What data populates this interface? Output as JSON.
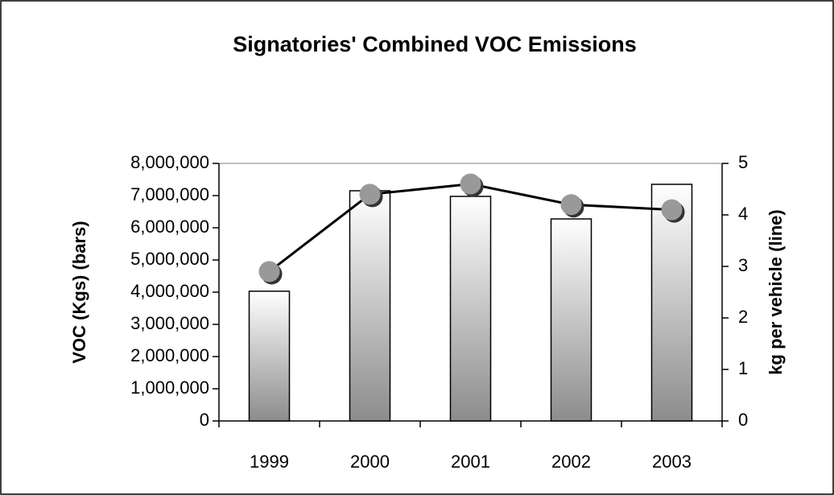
{
  "chart_data": {
    "type": "bar_line",
    "title": "Signatories' Combined VOC Emissions",
    "y_label": "VOC (Kgs) (bars)",
    "y2_label": "kg per vehicle (line)",
    "categories": [
      "1999",
      "2000",
      "2001",
      "2002",
      "2003"
    ],
    "series": [
      {
        "name": "VOC (Kgs)",
        "type": "bar",
        "axis": "y",
        "color": "#8c8c8c",
        "values": [
          4030000,
          7150000,
          6975000,
          6275000,
          7350000
        ]
      },
      {
        "name": "kg per vehicle",
        "type": "line",
        "axis": "y2",
        "color": "#000000",
        "marker_color": "#999999",
        "values": [
          2.9,
          4.4,
          4.6,
          4.2,
          4.1
        ]
      }
    ],
    "ylim": [
      0,
      8000000
    ],
    "yticks": [
      0,
      {
        "value": 1000000,
        "label": "1,000,000"
      },
      {
        "value": 2000000,
        "label": "2,000,000"
      },
      {
        "value": 3000000,
        "label": "3,000,000"
      },
      {
        "value": 4000000,
        "label": "4,000,000"
      },
      {
        "value": 5000000,
        "label": "5,000,000"
      },
      {
        "value": 6000000,
        "label": "6,000,000"
      },
      {
        "value": 7000000,
        "label": "7,000,000"
      },
      {
        "value": 8000000,
        "label": "8,000,000"
      }
    ],
    "y2lim": [
      0,
      5
    ],
    "y2ticks": [
      0,
      1,
      2,
      3,
      4,
      5
    ],
    "grid": false
  }
}
